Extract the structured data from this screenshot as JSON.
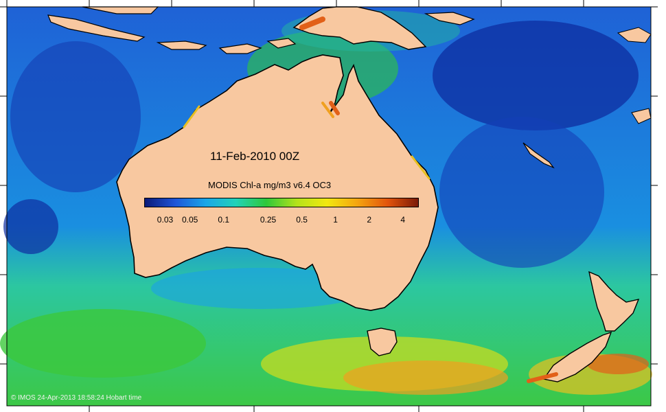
{
  "map": {
    "date_label": "11-Feb-2010 00Z",
    "colorbar": {
      "title": "MODIS Chl-a mg/m3 v6.4 OC3",
      "colors": [
        "#0a1a78",
        "#1f55d8",
        "#1aa6e8",
        "#22d2b8",
        "#2ec83a",
        "#b4e21a",
        "#f2e810",
        "#f4a410",
        "#e2540c",
        "#7a1a08"
      ],
      "ticks": [
        {
          "label": "0.03",
          "value": 0.03
        },
        {
          "label": "0.05",
          "value": 0.05
        },
        {
          "label": "0.1",
          "value": 0.1
        },
        {
          "label": "0.25",
          "value": 0.25
        },
        {
          "label": "0.5",
          "value": 0.5
        },
        {
          "label": "1",
          "value": 1
        },
        {
          "label": "2",
          "value": 2
        },
        {
          "label": "4",
          "value": 4
        }
      ]
    },
    "land_color": "#f8c8a0",
    "coast_color": "#000000",
    "credit": "© IMOS 24-Apr-2013 18:58:24 Hobart time"
  }
}
